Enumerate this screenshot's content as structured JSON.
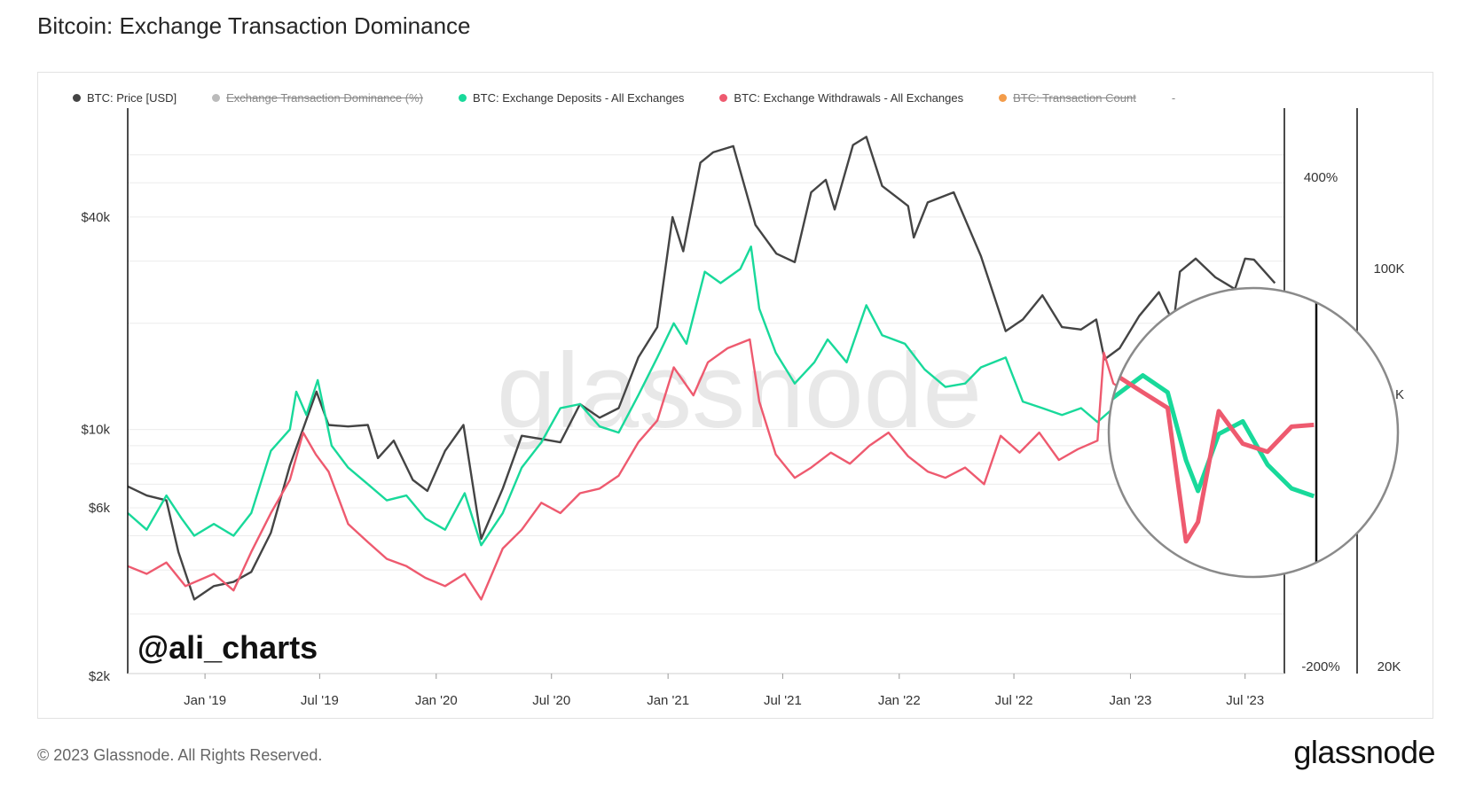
{
  "title": "Bitcoin: Exchange Transaction Dominance",
  "legend": [
    {
      "label": "BTC: Price [USD]",
      "color": "#444444",
      "enabled": true
    },
    {
      "label": "Exchange Transaction Dominance (%)",
      "color": "#bbbbbb",
      "enabled": false
    },
    {
      "label": "BTC: Exchange Deposits - All Exchanges",
      "color": "#18d99a",
      "enabled": true
    },
    {
      "label": "BTC: Exchange Withdrawals - All Exchanges",
      "color": "#ee5a6f",
      "enabled": true
    },
    {
      "label": "BTC: Transaction Count",
      "color": "#f39c4a",
      "enabled": false
    }
  ],
  "legend_trailing": "-",
  "watermark": "glassnode",
  "handle": "@ali_charts",
  "footer": "© 2023 Glassnode. All Rights Reserved.",
  "brand": "glassnode",
  "chart_data": {
    "type": "line",
    "x_ticks": [
      "Jan '19",
      "Jul '19",
      "Jan '20",
      "Jul '20",
      "Jan '21",
      "Jul '21",
      "Jan '22",
      "Jul '22",
      "Jan '23",
      "Jul '23"
    ],
    "left_axis": {
      "label": "",
      "scale": "log",
      "ticks": [
        "$2k",
        "$6k",
        "$10k",
        "$40k"
      ],
      "tick_values": [
        2000,
        6000,
        10000,
        40000
      ]
    },
    "right_axis_1": {
      "ticks": [
        "400%",
        "-200%"
      ]
    },
    "right_axis_2": {
      "ticks": [
        "100K",
        "K",
        "20K"
      ]
    },
    "series": [
      {
        "name": "BTC: Price [USD]",
        "color": "#444444",
        "points": [
          [
            "2018-09-01",
            6900
          ],
          [
            "2018-10-01",
            6500
          ],
          [
            "2018-11-01",
            6300
          ],
          [
            "2018-11-20",
            4500
          ],
          [
            "2018-12-15",
            3300
          ],
          [
            "2019-01-15",
            3600
          ],
          [
            "2019-02-15",
            3700
          ],
          [
            "2019-03-15",
            3950
          ],
          [
            "2019-04-15",
            5100
          ],
          [
            "2019-05-15",
            7900
          ],
          [
            "2019-06-26",
            12800
          ],
          [
            "2019-07-15",
            10300
          ],
          [
            "2019-08-15",
            10200
          ],
          [
            "2019-09-15",
            10300
          ],
          [
            "2019-10-01",
            8300
          ],
          [
            "2019-10-26",
            9300
          ],
          [
            "2019-11-25",
            7200
          ],
          [
            "2019-12-18",
            6700
          ],
          [
            "2020-01-15",
            8700
          ],
          [
            "2020-02-13",
            10300
          ],
          [
            "2020-03-12",
            4900
          ],
          [
            "2020-04-15",
            6800
          ],
          [
            "2020-05-15",
            9600
          ],
          [
            "2020-06-15",
            9400
          ],
          [
            "2020-07-15",
            9200
          ],
          [
            "2020-08-15",
            11800
          ],
          [
            "2020-09-15",
            10800
          ],
          [
            "2020-10-15",
            11500
          ],
          [
            "2020-11-15",
            16000
          ],
          [
            "2020-12-15",
            19500
          ],
          [
            "2021-01-08",
            40000
          ],
          [
            "2021-01-25",
            32000
          ],
          [
            "2021-02-21",
            57000
          ],
          [
            "2021-03-13",
            61000
          ],
          [
            "2021-04-14",
            63500
          ],
          [
            "2021-05-19",
            38000
          ],
          [
            "2021-06-21",
            31500
          ],
          [
            "2021-07-20",
            29800
          ],
          [
            "2021-08-15",
            47000
          ],
          [
            "2021-09-07",
            51000
          ],
          [
            "2021-09-21",
            42000
          ],
          [
            "2021-10-20",
            64000
          ],
          [
            "2021-11-10",
            67500
          ],
          [
            "2021-12-05",
            49000
          ],
          [
            "2022-01-15",
            43000
          ],
          [
            "2022-01-24",
            35000
          ],
          [
            "2022-02-15",
            44000
          ],
          [
            "2022-03-28",
            47000
          ],
          [
            "2022-05-10",
            31000
          ],
          [
            "2022-06-18",
            19000
          ],
          [
            "2022-07-15",
            20500
          ],
          [
            "2022-08-15",
            24000
          ],
          [
            "2022-09-15",
            19500
          ],
          [
            "2022-10-15",
            19200
          ],
          [
            "2022-11-08",
            20500
          ],
          [
            "2022-11-21",
            15800
          ],
          [
            "2022-12-15",
            17000
          ],
          [
            "2023-01-15",
            21000
          ],
          [
            "2023-02-15",
            24500
          ],
          [
            "2023-03-10",
            20000
          ],
          [
            "2023-03-20",
            28000
          ],
          [
            "2023-04-14",
            30500
          ],
          [
            "2023-05-15",
            27000
          ],
          [
            "2023-06-15",
            25000
          ],
          [
            "2023-07-01",
            30500
          ],
          [
            "2023-07-15",
            30300
          ],
          [
            "2023-08-17",
            26000
          ]
        ]
      },
      {
        "name": "BTC: Exchange Deposits - All Exchanges",
        "color": "#18d99a",
        "points": [
          [
            "2018-09-01",
            5800
          ],
          [
            "2018-10-01",
            5200
          ],
          [
            "2018-11-01",
            6500
          ],
          [
            "2018-11-25",
            5600
          ],
          [
            "2018-12-15",
            5000
          ],
          [
            "2019-01-15",
            5400
          ],
          [
            "2019-02-15",
            5000
          ],
          [
            "2019-03-15",
            5800
          ],
          [
            "2019-04-15",
            8700
          ],
          [
            "2019-05-15",
            10000
          ],
          [
            "2019-05-25",
            12800
          ],
          [
            "2019-06-10",
            11000
          ],
          [
            "2019-06-28",
            13800
          ],
          [
            "2019-07-20",
            9000
          ],
          [
            "2019-08-15",
            7800
          ],
          [
            "2019-09-15",
            7000
          ],
          [
            "2019-10-15",
            6300
          ],
          [
            "2019-11-15",
            6500
          ],
          [
            "2019-12-15",
            5600
          ],
          [
            "2020-01-15",
            5200
          ],
          [
            "2020-02-15",
            6600
          ],
          [
            "2020-03-12",
            4700
          ],
          [
            "2020-04-15",
            5800
          ],
          [
            "2020-05-15",
            7800
          ],
          [
            "2020-06-15",
            9200
          ],
          [
            "2020-07-15",
            11500
          ],
          [
            "2020-08-15",
            11800
          ],
          [
            "2020-09-15",
            10200
          ],
          [
            "2020-10-15",
            9800
          ],
          [
            "2020-11-15",
            12500
          ],
          [
            "2020-12-15",
            16000
          ],
          [
            "2021-01-10",
            20000
          ],
          [
            "2021-01-30",
            17500
          ],
          [
            "2021-02-28",
            28000
          ],
          [
            "2021-03-25",
            26000
          ],
          [
            "2021-04-25",
            28500
          ],
          [
            "2021-05-12",
            33000
          ],
          [
            "2021-05-25",
            22000
          ],
          [
            "2021-06-20",
            16500
          ],
          [
            "2021-07-20",
            13500
          ],
          [
            "2021-08-20",
            15500
          ],
          [
            "2021-09-10",
            18000
          ],
          [
            "2021-10-10",
            15500
          ],
          [
            "2021-11-10",
            22500
          ],
          [
            "2021-12-05",
            18500
          ],
          [
            "2022-01-10",
            17500
          ],
          [
            "2022-02-10",
            14800
          ],
          [
            "2022-03-15",
            13200
          ],
          [
            "2022-04-15",
            13500
          ],
          [
            "2022-05-10",
            15000
          ],
          [
            "2022-06-18",
            16000
          ],
          [
            "2022-07-15",
            12000
          ],
          [
            "2022-08-15",
            11500
          ],
          [
            "2022-09-15",
            11000
          ],
          [
            "2022-10-15",
            11500
          ],
          [
            "2022-11-10",
            10500
          ],
          [
            "2022-12-05",
            11500
          ],
          [
            "2023-01-15",
            13200
          ],
          [
            "2023-02-15",
            12000
          ],
          [
            "2023-03-10",
            8200
          ],
          [
            "2023-03-25",
            6900
          ],
          [
            "2023-04-20",
            9500
          ],
          [
            "2023-05-20",
            10200
          ],
          [
            "2023-06-20",
            8000
          ],
          [
            "2023-07-20",
            7000
          ],
          [
            "2023-08-17",
            6700
          ]
        ]
      },
      {
        "name": "BTC: Exchange Withdrawals - All Exchanges",
        "color": "#ee5a6f",
        "points": [
          [
            "2018-09-01",
            4100
          ],
          [
            "2018-10-01",
            3900
          ],
          [
            "2018-11-01",
            4200
          ],
          [
            "2018-12-01",
            3600
          ],
          [
            "2019-01-15",
            3900
          ],
          [
            "2019-02-15",
            3500
          ],
          [
            "2019-03-15",
            4500
          ],
          [
            "2019-04-15",
            5800
          ],
          [
            "2019-05-15",
            7200
          ],
          [
            "2019-06-05",
            9800
          ],
          [
            "2019-06-25",
            8500
          ],
          [
            "2019-07-15",
            7600
          ],
          [
            "2019-08-15",
            5400
          ],
          [
            "2019-09-15",
            4800
          ],
          [
            "2019-10-15",
            4300
          ],
          [
            "2019-11-15",
            4100
          ],
          [
            "2019-12-15",
            3800
          ],
          [
            "2020-01-15",
            3600
          ],
          [
            "2020-02-15",
            3900
          ],
          [
            "2020-03-12",
            3300
          ],
          [
            "2020-04-15",
            4600
          ],
          [
            "2020-05-15",
            5200
          ],
          [
            "2020-06-15",
            6200
          ],
          [
            "2020-07-15",
            5800
          ],
          [
            "2020-08-15",
            6600
          ],
          [
            "2020-09-15",
            6800
          ],
          [
            "2020-10-15",
            7400
          ],
          [
            "2020-11-15",
            9200
          ],
          [
            "2020-12-15",
            10600
          ],
          [
            "2021-01-10",
            15000
          ],
          [
            "2021-02-10",
            12500
          ],
          [
            "2021-03-05",
            15500
          ],
          [
            "2021-04-05",
            17000
          ],
          [
            "2021-05-10",
            18000
          ],
          [
            "2021-05-25",
            12000
          ],
          [
            "2021-06-20",
            8500
          ],
          [
            "2021-07-20",
            7300
          ],
          [
            "2021-08-15",
            7800
          ],
          [
            "2021-09-15",
            8600
          ],
          [
            "2021-10-15",
            8000
          ],
          [
            "2021-11-15",
            9000
          ],
          [
            "2021-12-15",
            9800
          ],
          [
            "2022-01-15",
            8400
          ],
          [
            "2022-02-15",
            7600
          ],
          [
            "2022-03-15",
            7300
          ],
          [
            "2022-04-15",
            7800
          ],
          [
            "2022-05-15",
            7000
          ],
          [
            "2022-06-10",
            9600
          ],
          [
            "2022-07-10",
            8600
          ],
          [
            "2022-08-10",
            9800
          ],
          [
            "2022-09-10",
            8200
          ],
          [
            "2022-10-10",
            8800
          ],
          [
            "2022-11-10",
            9300
          ],
          [
            "2022-11-20",
            16500
          ],
          [
            "2022-12-05",
            13500
          ],
          [
            "2023-01-15",
            12000
          ],
          [
            "2023-02-15",
            11000
          ],
          [
            "2023-03-10",
            5200
          ],
          [
            "2023-03-25",
            5800
          ],
          [
            "2023-04-20",
            10800
          ],
          [
            "2023-05-20",
            9000
          ],
          [
            "2023-06-20",
            8600
          ],
          [
            "2023-07-20",
            9900
          ],
          [
            "2023-08-17",
            10000
          ]
        ]
      }
    ],
    "grid": true,
    "legend_position": "top-left",
    "annotation": "circular zoom lens around Jan '23 – Aug '23"
  }
}
